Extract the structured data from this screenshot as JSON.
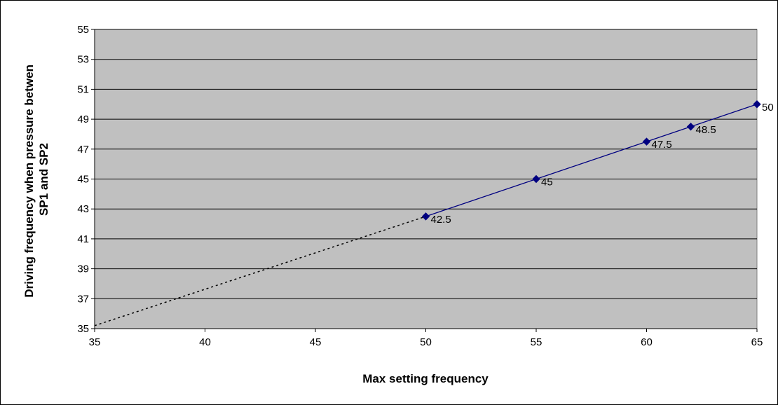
{
  "chart_data": {
    "type": "line",
    "xlabel": "Max setting frequency",
    "ylabel": [
      "Driving frequency when pressure betwen",
      "SP1 and SP2"
    ],
    "xlim": [
      35,
      65
    ],
    "ylim": [
      35,
      55
    ],
    "x_ticks": [
      35,
      40,
      45,
      50,
      55,
      60,
      65
    ],
    "y_ticks": [
      35,
      37,
      39,
      41,
      43,
      45,
      47,
      49,
      51,
      53,
      55
    ],
    "grid": "horizontal",
    "legend": "none",
    "series": [
      {
        "style": "solid",
        "marker": "diamond",
        "color": "#000080",
        "x": [
          50,
          55,
          60,
          62,
          65
        ],
        "y": [
          42.5,
          45,
          47.5,
          48.5,
          50
        ],
        "labels": [
          "42.5",
          "45",
          "47.5",
          "48.5",
          "50"
        ]
      },
      {
        "style": "dotted",
        "marker": "none",
        "color": "#000000",
        "x": [
          35,
          50
        ],
        "y": [
          35.2,
          42.5
        ]
      }
    ],
    "plot_background": "#c0c0c0"
  }
}
